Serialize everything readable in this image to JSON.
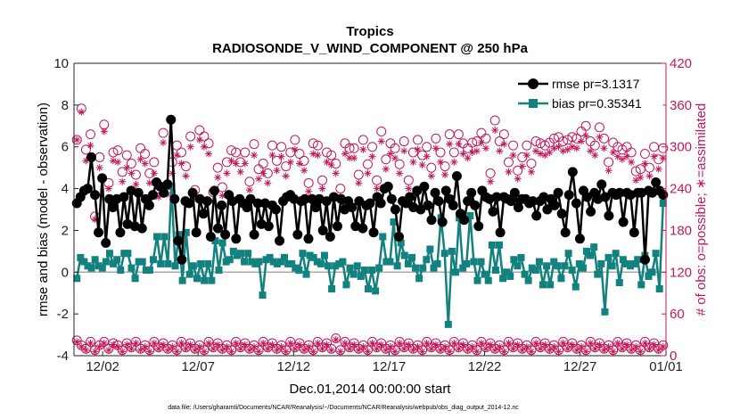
{
  "chart_data": {
    "type": "line",
    "title_line1": "Tropics",
    "title_line2": "RADIOSONDE_V_WIND_COMPONENT @ 250 hPa",
    "xlabel": "Dec.01,2014 00:00:00 start",
    "ylabel": "rmse and bias (model - observation)",
    "ylabel_right": "# of obs: o=possible; ∗=assimilated",
    "footnote": "data file: /Users/gharamti/Documents/NCAR/Reanalysis/~/Documents/NCAR/Reanalysis/webpub/obs_diag_output_2014-12.nc",
    "xlim": [
      0.5,
      31.5
    ],
    "ylim": [
      -4,
      10
    ],
    "ylim_right": [
      0,
      420
    ],
    "x_ticks": [
      {
        "x": 2,
        "label": "12/02"
      },
      {
        "x": 7,
        "label": "12/07"
      },
      {
        "x": 12,
        "label": "12/12"
      },
      {
        "x": 17,
        "label": "12/17"
      },
      {
        "x": 22,
        "label": "12/22"
      },
      {
        "x": 27,
        "label": "12/27"
      },
      {
        "x": 32,
        "label": "01/01"
      }
    ],
    "y_ticks": [
      -4,
      -2,
      0,
      2,
      4,
      6,
      8,
      10
    ],
    "y_ticks_right": [
      0,
      60,
      120,
      180,
      240,
      300,
      360,
      420
    ],
    "colors": {
      "rmse": "#000000",
      "bias": "#13827f",
      "obs": "#c2185b",
      "zero_line": "#aaaaaa"
    },
    "legend": [
      {
        "key": "rmse",
        "label": "rmse pr=3.1317"
      },
      {
        "key": "bias",
        "label": "bias pr=0.35341"
      }
    ],
    "series": [
      {
        "name": "rmse pr=3.1317",
        "key": "rmse",
        "values": [
          3.3,
          3.6,
          3.9,
          4.0,
          5.5,
          3.7,
          1.9,
          4.5,
          1.4,
          3.5,
          3.1,
          3.5,
          1.9,
          3.6,
          2.3,
          3.9,
          2.2,
          3.8,
          2.1,
          3.5,
          3.2,
          3.7,
          4.3,
          4.1,
          3.8,
          4.2,
          7.3,
          3.5,
          1.5,
          0.6,
          3.4,
          3.3,
          3.8,
          1.9,
          3.5,
          2.8,
          3.4,
          1.7,
          3.9,
          2.1,
          3.2,
          1.8,
          3.7,
          3.4,
          1.6,
          3.5,
          3.3,
          3.1,
          3.5,
          1.8,
          3.3,
          2.3,
          3.3,
          2.2,
          3.2,
          3.0,
          1.5,
          3.4,
          3.6,
          3.7,
          3.5,
          1.8,
          3.4,
          3.5,
          1.6,
          3.5,
          3.1,
          3.5,
          2.0,
          3.4,
          1.7,
          3.6,
          2.2,
          3.5,
          3.0,
          3.4,
          3.1,
          2.2,
          3.4,
          2.1,
          3.2,
          3.3,
          1.9,
          3.6,
          3.3,
          4.0,
          4.1,
          3.5,
          3.0,
          1.7,
          3.4,
          3.3,
          3.6,
          3.1,
          3.9,
          3.0,
          4.1,
          3.2,
          2.5,
          3.8,
          3.4,
          2.4,
          3.9,
          3.5,
          3.2,
          4.6,
          2.8,
          2.5,
          3.4,
          3.8,
          3.2,
          2.2,
          3.9,
          3.6,
          3.5,
          2.9,
          3.6,
          1.9,
          3.6,
          3.5,
          3.4,
          3.8,
          3.1,
          3.5,
          3.5,
          3.3,
          3.4,
          2.7,
          3.4,
          3.6,
          3.0,
          3.5,
          3.2,
          3.8,
          2.8,
          1.9,
          3.7,
          4.8,
          3.3,
          1.6,
          3.9,
          3.6,
          2.9,
          3.8,
          3.5,
          4.2,
          3.6,
          2.7,
          3.8,
          3.7,
          3.8,
          2.4,
          3.8,
          3.7,
          1.9,
          3.8,
          3.8,
          0.6,
          3.9,
          3.8,
          4.3,
          3.9,
          3.7
        ]
      },
      {
        "name": "bias pr=0.35341",
        "key": "bias",
        "values": [
          -0.3,
          0.7,
          0.5,
          0.3,
          0.2,
          0.6,
          0.3,
          0.2,
          0.5,
          0.9,
          0.4,
          0.6,
          0.1,
          0.9,
          0.9,
          0.2,
          -0.3,
          0.5,
          0.5,
          0.1,
          0.1,
          0.6,
          1.7,
          0.4,
          1.7,
          0.4,
          4.1,
          0.3,
          1.8,
          -0.4,
          1.9,
          -0.1,
          0.3,
          -0.3,
          0.4,
          -0.4,
          0.4,
          -0.4,
          1.5,
          0.1,
          1.4,
          0.5,
          0.6,
          1.0,
          0.8,
          0.9,
          0.5,
          0.9,
          0.5,
          0.4,
          0.5,
          -1.1,
          0.6,
          0.7,
          0.5,
          0.4,
          0.5,
          0.7,
          0.4,
          0.4,
          0.2,
          0.1,
          0.9,
          -0.1,
          0.8,
          0.7,
          0.5,
          0.4,
          0.8,
          0.3,
          -0.8,
          0.3,
          0.4,
          0.5,
          -0.6,
          0.2,
          -0.1,
          0.3,
          -0.2,
          0.1,
          -0.8,
          0.1,
          -0.9,
          0.2,
          1.7,
          0.5,
          0.5,
          2.4,
          0.3,
          1.4,
          0.8,
          0.4,
          0.7,
          0.2,
          -0.3,
          0.2,
          0.6,
          1.1,
          0.2,
          0.4,
          2.6,
          0.9,
          -2.5,
          1.0,
          0.0,
          2.6,
          0.2,
          0.4,
          2.7,
          0.5,
          -0.4,
          0.5,
          -0.1,
          -0.4,
          1.3,
          0.1,
          1.3,
          -0.3,
          0.0,
          -0.2,
          0.6,
          0.3,
          0.7,
          -0.1,
          -0.4,
          0.2,
          0.1,
          0.5,
          -0.6,
          0.3,
          -0.6,
          0.5,
          0.3,
          -0.3,
          0.3,
          0.9,
          0.1,
          -0.7,
          0.4,
          0.2,
          1.0,
          0.8,
          1.2,
          -0.1,
          0.4,
          -1.9,
          0.7,
          0.3,
          0.9,
          -0.5,
          0.6,
          0.4,
          0.3,
          0.4,
          0.6,
          -0.6,
          0.8,
          -0.2,
          0.0,
          0.9,
          -0.8,
          3.3
        ]
      },
      {
        "name": "obs possible",
        "key": "obs_possible",
        "values": [
          310,
          355,
          296,
          318,
          200,
          285,
          332,
          248,
          292,
          295,
          264,
          288,
          276,
          260,
          298,
          290,
          262,
          278,
          240,
          320,
          246,
          278,
          302,
          292,
          272,
          315,
          238,
          324,
          315,
          305,
          235,
          270,
          242,
          278,
          295,
          292,
          278,
          292,
          250,
          304,
          268,
          276,
          262,
          302,
          280,
          300,
          272,
          292,
          310,
          290,
          280,
          248,
          305,
          302,
          252,
          292,
          288,
          276,
          240,
          305,
          298,
          298,
          260,
          310,
          275,
          300,
          252,
          322,
          282,
          305,
          298,
          275,
          308,
          252,
          292,
          310,
          288,
          300,
          270,
          312,
          292,
          272,
          318,
          292,
          318,
          305,
          298,
          306,
          308,
          320,
          312,
          262,
          338,
          308,
          318,
          278,
          302,
          266,
          285,
          302,
          276,
          308,
          305,
          302,
          306,
          312,
          314,
          308,
          310,
          314,
          312,
          322,
          330,
          308,
          302,
          328,
          312,
          278,
          306,
          300,
          296,
          300,
          292,
          265,
          268,
          290,
          270,
          300,
          282,
          298
        ]
      },
      {
        "name": "obs assimilated",
        "key": "obs_assimilated",
        "values": [
          310,
          350,
          280,
          302,
          196,
          270,
          322,
          240,
          280,
          278,
          250,
          270,
          262,
          246,
          282,
          276,
          248,
          262,
          228,
          306,
          232,
          262,
          288,
          276,
          258,
          300,
          226,
          310,
          300,
          290,
          222,
          256,
          230,
          262,
          280,
          276,
          264,
          276,
          238,
          288,
          254,
          262,
          248,
          288,
          266,
          286,
          258,
          278,
          296,
          276,
          266,
          236,
          290,
          288,
          240,
          278,
          274,
          262,
          228,
          290,
          284,
          284,
          248,
          296,
          262,
          286,
          240,
          308,
          268,
          290,
          284,
          262,
          294,
          240,
          278,
          296,
          274,
          286,
          258,
          298,
          278,
          260,
          304,
          278,
          304,
          290,
          284,
          292,
          294,
          306,
          298,
          250,
          324,
          294,
          304,
          264,
          288,
          254,
          272,
          288,
          264,
          294,
          290,
          288,
          292,
          298,
          300,
          294,
          296,
          300,
          298,
          308,
          316,
          294,
          288,
          314,
          298,
          266,
          292,
          286,
          282,
          286,
          278,
          252,
          256,
          276,
          258,
          286,
          268,
          284
        ]
      },
      {
        "name": "obs possible (lower)",
        "key": "obs_lower_possible",
        "values": [
          22,
          15,
          10,
          20,
          8,
          15,
          20,
          10,
          18,
          15,
          8,
          18,
          12,
          20,
          10,
          15,
          8,
          20,
          12,
          18,
          10,
          15,
          8,
          20,
          12,
          18,
          10,
          15,
          8,
          20,
          12,
          18,
          10,
          15,
          8,
          20,
          12,
          18,
          10,
          15,
          8,
          20,
          12,
          18,
          10,
          15,
          8,
          20,
          12,
          18,
          10,
          15,
          8,
          20,
          12,
          18,
          10,
          25,
          8,
          20,
          12,
          18,
          10,
          15,
          8,
          20,
          12,
          18,
          10,
          15,
          8,
          20,
          12,
          18,
          10,
          15,
          8,
          20,
          12,
          18,
          10,
          15,
          8,
          20,
          12,
          18,
          10,
          15,
          8,
          20,
          12,
          18,
          10,
          15,
          8,
          20,
          12,
          18,
          10,
          15,
          8,
          20,
          12,
          18,
          10,
          15,
          8,
          20,
          12,
          18,
          10,
          15,
          8,
          20,
          12,
          18,
          10,
          15,
          8,
          20,
          12,
          18,
          10,
          15,
          8,
          20,
          12,
          18,
          10,
          15
        ]
      },
      {
        "name": "obs assimilated (lower)",
        "key": "obs_lower_assimilated",
        "values": [
          20,
          13,
          8,
          18,
          6,
          13,
          18,
          8,
          16,
          13,
          6,
          16,
          10,
          18,
          8,
          13,
          6,
          18,
          10,
          16,
          8,
          13,
          6,
          18,
          10,
          16,
          8,
          13,
          6,
          18,
          10,
          16,
          8,
          13,
          6,
          18,
          10,
          16,
          8,
          13,
          6,
          18,
          10,
          16,
          8,
          13,
          6,
          18,
          10,
          16,
          8,
          13,
          6,
          18,
          10,
          16,
          8,
          23,
          6,
          18,
          10,
          16,
          8,
          13,
          6,
          18,
          10,
          16,
          8,
          13,
          6,
          18,
          10,
          16,
          8,
          13,
          6,
          18,
          10,
          16,
          8,
          13,
          6,
          18,
          10,
          16,
          8,
          13,
          6,
          18,
          10,
          16,
          8,
          13,
          6,
          18,
          10,
          16,
          8,
          13,
          6,
          18,
          10,
          16,
          8,
          13,
          6,
          18,
          10,
          16,
          8,
          13,
          6,
          18,
          10,
          16,
          8,
          13,
          6,
          18,
          10,
          16,
          8,
          13,
          6,
          18,
          10,
          16,
          8,
          13
        ]
      }
    ]
  }
}
